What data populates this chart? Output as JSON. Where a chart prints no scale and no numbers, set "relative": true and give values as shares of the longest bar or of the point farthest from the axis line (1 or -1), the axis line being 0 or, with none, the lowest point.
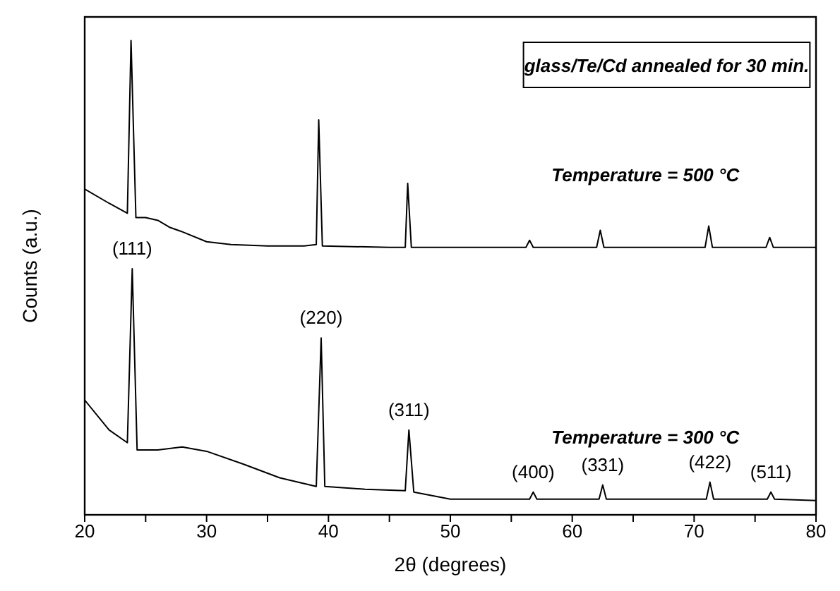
{
  "chart_data": {
    "type": "line",
    "relative": true,
    "title": "glass/Te/Cd annealed for 30 min.",
    "xlabel": "2θ (degrees)",
    "ylabel": "Counts (a.u.)",
    "xlim": [
      20,
      80
    ],
    "xticks": [
      20,
      {
        "value": 25,
        "label": null
      },
      30,
      {
        "value": 35,
        "label": null
      },
      40,
      {
        "value": 45,
        "label": null
      },
      50,
      {
        "value": 55,
        "label": null
      },
      60,
      {
        "value": 65,
        "label": null
      },
      70,
      {
        "value": 75,
        "label": null
      },
      80
    ],
    "marker": "none",
    "line_style": "solid",
    "series": [
      {
        "name": "Temperature = 500 °C",
        "color": "#000000",
        "x": [
          20,
          22,
          23.5,
          23.8,
          24.2,
          25,
          26,
          27,
          28,
          30,
          32,
          35,
          38,
          39,
          39.2,
          39.5,
          45,
          46.3,
          46.5,
          46.8,
          50,
          56.2,
          56.5,
          56.8,
          62,
          62.3,
          62.6,
          70.9,
          71.2,
          71.5,
          75.9,
          76.2,
          76.5,
          80
        ],
        "values": [
          0.687,
          0.657,
          0.636,
          1.0,
          0.627,
          0.627,
          0.621,
          0.606,
          0.597,
          0.576,
          0.57,
          0.567,
          0.567,
          0.57,
          0.833,
          0.567,
          0.564,
          0.564,
          0.699,
          0.564,
          0.564,
          0.564,
          0.579,
          0.564,
          0.564,
          0.6,
          0.564,
          0.564,
          0.609,
          0.564,
          0.564,
          0.585,
          0.564,
          0.564
        ]
      },
      {
        "name": "Temperature = 300 °C",
        "color": "#000000",
        "x": [
          20,
          22,
          23.5,
          23.9,
          24.3,
          26,
          28,
          30,
          33,
          36,
          39,
          39.4,
          39.7,
          43,
          46.3,
          46.6,
          47,
          50,
          56.5,
          56.8,
          57.1,
          62.2,
          62.5,
          62.8,
          71,
          71.3,
          71.6,
          76,
          76.3,
          76.6,
          80
        ],
        "values": [
          0.242,
          0.179,
          0.152,
          0.519,
          0.137,
          0.137,
          0.143,
          0.134,
          0.107,
          0.078,
          0.06,
          0.373,
          0.06,
          0.054,
          0.051,
          0.179,
          0.048,
          0.033,
          0.033,
          0.048,
          0.033,
          0.033,
          0.063,
          0.033,
          0.033,
          0.069,
          0.033,
          0.033,
          0.048,
          0.033,
          0.03
        ]
      }
    ],
    "annotations": [
      {
        "text": "(111)",
        "x": 23.9,
        "y": 0.519
      },
      {
        "text": "(220)",
        "x": 39.4,
        "y": 0.373
      },
      {
        "text": "(311)",
        "x": 46.6,
        "y": 0.179
      },
      {
        "text": "(400)",
        "x": 56.8,
        "y": 0.048
      },
      {
        "text": "(331)",
        "x": 62.5,
        "y": 0.063
      },
      {
        "text": "(422)",
        "x": 71.3,
        "y": 0.069
      },
      {
        "text": "(511)",
        "x": 76.3,
        "y": 0.048
      }
    ]
  }
}
